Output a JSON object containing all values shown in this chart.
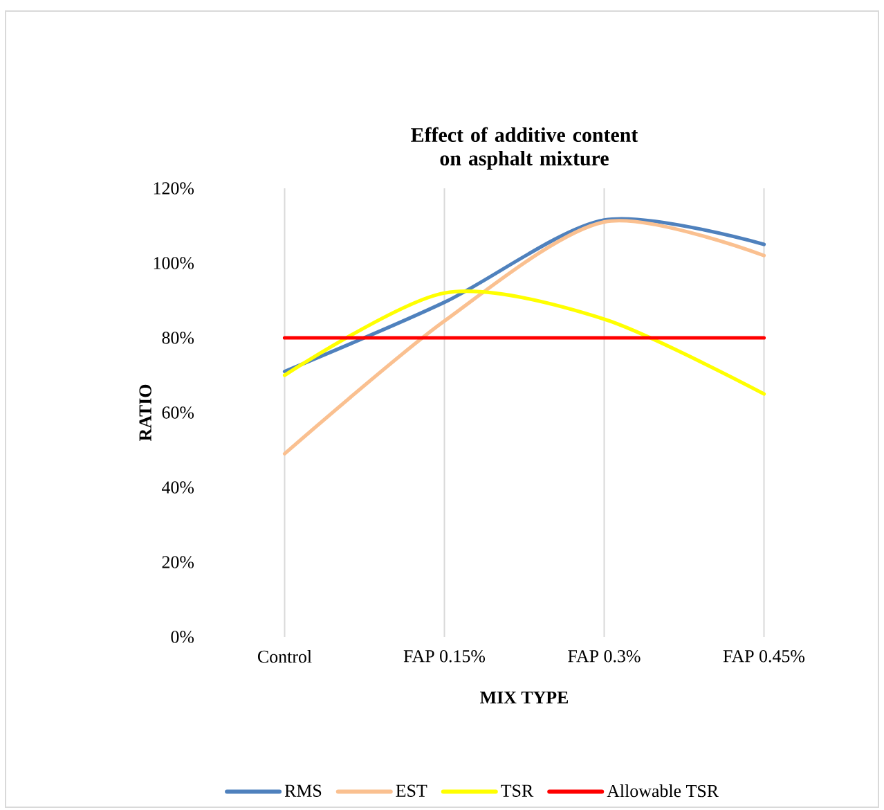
{
  "chart_data": {
    "type": "line",
    "title": "Effect of additive content  on asphalt mixture",
    "xlabel": "MIX TYPE",
    "ylabel": "RATIO",
    "categories": [
      "Control",
      "FAP 0.15%",
      "FAP 0.3%",
      "FAP 0.45%"
    ],
    "series": [
      {
        "name": "RMS",
        "color": "#4f81bd",
        "values": [
          71,
          89.5,
          111.5,
          105
        ]
      },
      {
        "name": "EST",
        "color": "#fac090",
        "values": [
          49,
          84.5,
          111,
          102
        ]
      },
      {
        "name": "TSR",
        "color": "#ffff00",
        "values": [
          70,
          92,
          85,
          65
        ]
      },
      {
        "name": "Allowable TSR",
        "color": "#ff0000",
        "values": [
          80,
          80,
          80,
          80
        ]
      }
    ],
    "ylim": [
      0,
      120
    ],
    "yticks": [
      {
        "value": 0,
        "label": "0%"
      },
      {
        "value": 20,
        "label": "20%"
      },
      {
        "value": 40,
        "label": "40%"
      },
      {
        "value": 60,
        "label": "60%"
      },
      {
        "value": 80,
        "label": "80%"
      },
      {
        "value": 100,
        "label": "100%"
      },
      {
        "value": 120,
        "label": "120%"
      }
    ],
    "grid": "x",
    "legend": "bottom",
    "marker": "none",
    "line_style": "solid"
  }
}
